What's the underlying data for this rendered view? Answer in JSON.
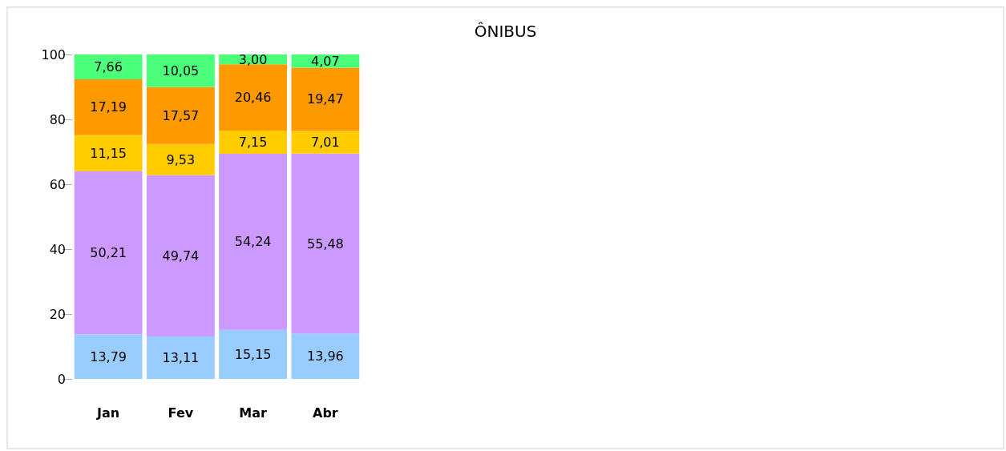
{
  "chart_data": {
    "type": "bar",
    "title": "ÔNIBUS",
    "categories": [
      "Jan",
      "Fev",
      "Mar",
      "Abr"
    ],
    "stacked": true,
    "ylim": [
      0,
      100
    ],
    "yticks": [
      0,
      20,
      40,
      60,
      80,
      100
    ],
    "grid": false,
    "series": [
      {
        "color": "#99ccff",
        "values": [
          13.79,
          13.11,
          15.15,
          13.96
        ],
        "value_labels": [
          "13,79",
          "13,11",
          "15,15",
          "13,96"
        ]
      },
      {
        "color": "#cc99ff",
        "values": [
          50.21,
          49.74,
          54.24,
          55.48
        ],
        "value_labels": [
          "50,21",
          "49,74",
          "54,24",
          "55,48"
        ]
      },
      {
        "color": "#ffcc00",
        "values": [
          11.15,
          9.53,
          7.15,
          7.01
        ],
        "value_labels": [
          "11,15",
          "9,53",
          "7,15",
          "7,01"
        ]
      },
      {
        "color": "#ff9900",
        "values": [
          17.19,
          17.57,
          20.46,
          19.47
        ],
        "value_labels": [
          "17,19",
          "17,57",
          "20,46",
          "19,47"
        ]
      },
      {
        "color": "#4cff7a",
        "values": [
          7.66,
          10.05,
          3.0,
          4.07
        ],
        "value_labels": [
          "7,66",
          "10,05",
          "3,00",
          "4,07"
        ]
      }
    ]
  }
}
